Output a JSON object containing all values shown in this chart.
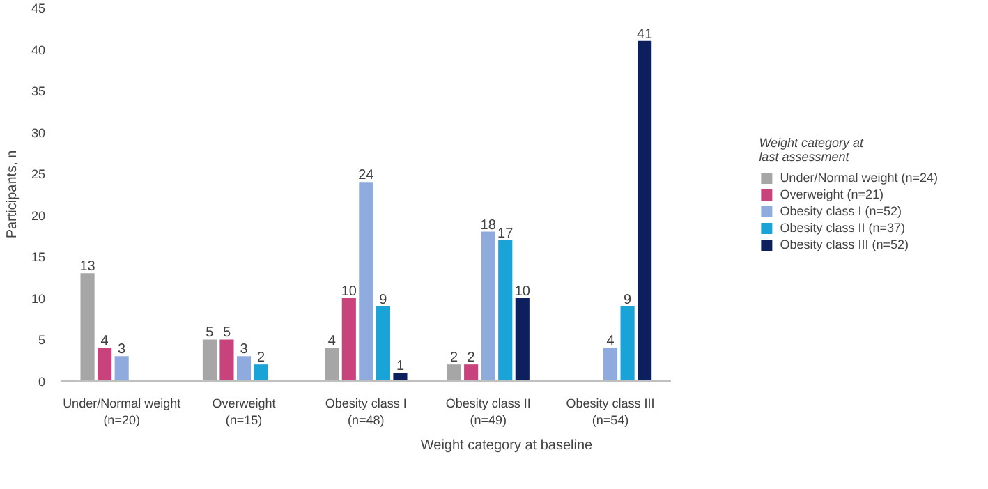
{
  "chart_data": {
    "type": "bar",
    "xlabel": "Weight category at baseline",
    "ylabel": "Participants, n",
    "legend_title": "Weight category at last assessment",
    "categories": [
      "Under/Normal weight\n(n=20)",
      "Overweight\n(n=15)",
      "Obesity class I\n(n=48)",
      "Obesity class II\n(n=49)",
      "Obesity class III\n(n=54)"
    ],
    "series": [
      {
        "name": "Under/Normal weight (n=24)",
        "color": "#a6a6a6",
        "values": [
          13,
          5,
          4,
          2,
          null
        ]
      },
      {
        "name": "Overweight (n=21)",
        "color": "#c8437c",
        "values": [
          4,
          5,
          10,
          2,
          null
        ]
      },
      {
        "name": "Obesity class I (n=52)",
        "color": "#8faadc",
        "values": [
          3,
          3,
          24,
          18,
          4
        ]
      },
      {
        "name": "Obesity class II (n=37)",
        "color": "#1aa3d6",
        "values": [
          null,
          2,
          9,
          17,
          9
        ]
      },
      {
        "name": "Obesity class III (n=52)",
        "color": "#0d1f5c",
        "values": [
          null,
          null,
          1,
          10,
          41
        ]
      }
    ],
    "ylim": [
      0,
      45
    ],
    "yticks": [
      0,
      5,
      10,
      15,
      20,
      25,
      30,
      35,
      40,
      45
    ],
    "grid": false,
    "legend": "right",
    "data_labels": true
  }
}
